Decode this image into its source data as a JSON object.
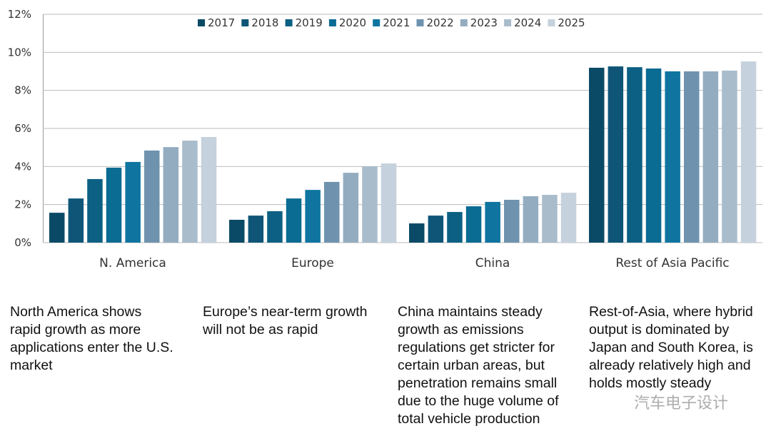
{
  "chart_data": {
    "type": "bar",
    "categories": [
      "N. America",
      "Europe",
      "China",
      "Rest of Asia Pacific"
    ],
    "series": [
      {
        "name": "2017",
        "color": "#0b4a66",
        "values": [
          1.57,
          1.2,
          1.01,
          9.19
        ]
      },
      {
        "name": "2018",
        "color": "#0e5578",
        "values": [
          2.32,
          1.42,
          1.42,
          9.26
        ]
      },
      {
        "name": "2019",
        "color": "#0c6083",
        "values": [
          3.34,
          1.65,
          1.61,
          9.22
        ]
      },
      {
        "name": "2020",
        "color": "#0a6b93",
        "values": [
          3.94,
          2.32,
          1.91,
          9.15
        ]
      },
      {
        "name": "2021",
        "color": "#0f75a0",
        "values": [
          4.24,
          2.77,
          2.14,
          9.0
        ]
      },
      {
        "name": "2022",
        "color": "#6f93ae",
        "values": [
          4.84,
          3.19,
          2.25,
          9.0
        ]
      },
      {
        "name": "2023",
        "color": "#93acc0",
        "values": [
          5.02,
          3.67,
          2.44,
          9.0
        ]
      },
      {
        "name": "2024",
        "color": "#a9bccb",
        "values": [
          5.36,
          4.01,
          2.51,
          9.04
        ]
      },
      {
        "name": "2025",
        "color": "#c5d1dc",
        "values": [
          5.55,
          4.16,
          2.62,
          9.52
        ]
      }
    ],
    "ylim": [
      0,
      12
    ],
    "yticks": [
      {
        "value": 0,
        "label": "0%"
      },
      {
        "value": 2,
        "label": "2%"
      },
      {
        "value": 4,
        "label": "4%"
      },
      {
        "value": 6,
        "label": "6%"
      },
      {
        "value": 8,
        "label": "8%"
      },
      {
        "value": 10,
        "label": "10%"
      },
      {
        "value": 12,
        "label": "12%"
      }
    ],
    "grid": true,
    "legend": "top",
    "annotations": [
      [
        "North America shows",
        "rapid growth as more",
        "applications enter the U.S.",
        "market"
      ],
      [
        "Europe’s near-term growth",
        "will not be as rapid"
      ],
      [
        "China maintains steady",
        "growth as emissions",
        "regulations get stricter for",
        "certain urban areas, but",
        "penetration remains small",
        "due to the huge volume of",
        "total vehicle production"
      ],
      [
        "Rest-of-Asia, where hybrid",
        "output is dominated by",
        "Japan and South Korea, is",
        "already relatively high and",
        "holds mostly steady"
      ]
    ],
    "watermark": "汽车电子设计"
  }
}
